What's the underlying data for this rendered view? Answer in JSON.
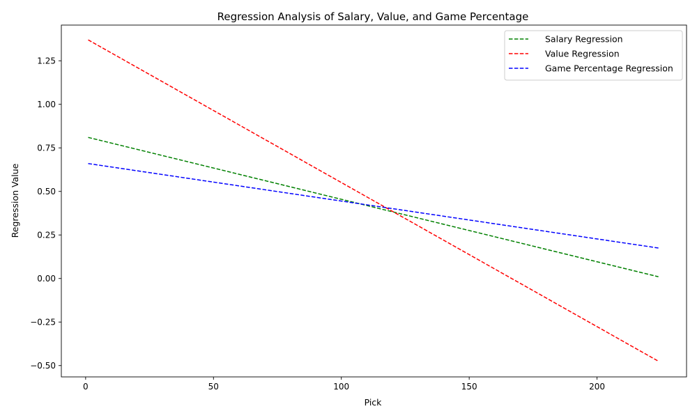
{
  "chart_data": {
    "type": "line",
    "title": "Regression Analysis of Salary, Value, and Game Percentage",
    "xlabel": "Pick",
    "ylabel": "Regression Value",
    "xlim": [
      -9.5,
      235
    ],
    "ylim": [
      -0.565,
      1.455
    ],
    "xticks": [
      0,
      50,
      100,
      150,
      200
    ],
    "xtick_labels": [
      "0",
      "50",
      "100",
      "150",
      "200"
    ],
    "yticks": [
      -0.5,
      -0.25,
      0.0,
      0.25,
      0.5,
      0.75,
      1.0,
      1.25
    ],
    "ytick_labels": [
      "−0.50",
      "−0.25",
      "0.00",
      "0.25",
      "0.50",
      "0.75",
      "1.00",
      "1.25"
    ],
    "grid": false,
    "legend_position": "top-right",
    "series": [
      {
        "name": "Salary Regression",
        "color": "#008000",
        "linestyle": "dashed",
        "x": [
          1,
          224
        ],
        "y": [
          0.81,
          0.01
        ]
      },
      {
        "name": "Value Regression",
        "color": "#ff0000",
        "linestyle": "dashed",
        "x": [
          1,
          224
        ],
        "y": [
          1.37,
          -0.475
        ]
      },
      {
        "name": "Game Percentage Regression",
        "color": "#0000ff",
        "linestyle": "dashed",
        "x": [
          1,
          224
        ],
        "y": [
          0.66,
          0.175
        ]
      }
    ]
  }
}
